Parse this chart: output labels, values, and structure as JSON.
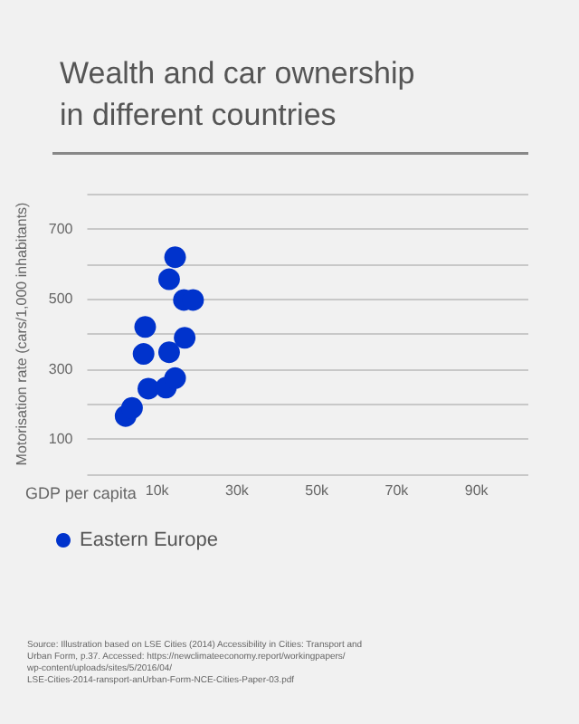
{
  "chart_data": {
    "type": "scatter",
    "title": "Wealth and car ownership\nin different countries",
    "xlabel": "GDP per capita",
    "ylabel": "Motorisation rate (cars/1,000 inhabitants)",
    "xlim": [
      -7500,
      103000
    ],
    "xticks": [
      {
        "value": 10000,
        "label": "10k"
      },
      {
        "value": 30000,
        "label": "30k"
      },
      {
        "value": 50000,
        "label": "50k"
      },
      {
        "value": 70000,
        "label": "70k"
      },
      {
        "value": 90000,
        "label": "90k"
      }
    ],
    "ylim": [
      0,
      800
    ],
    "yticks": [
      {
        "value": 0,
        "label": null
      },
      100,
      {
        "value": 200,
        "label": null
      },
      300,
      {
        "value": 400,
        "label": null
      },
      500,
      {
        "value": 600,
        "label": null
      },
      700,
      {
        "value": 800,
        "label": null
      }
    ],
    "grid": "y",
    "legend": "bottom left",
    "marker": "circle",
    "series": [
      {
        "name": "Eastern Europe",
        "color": "#0033cc",
        "x": [
          2100,
          3700,
          7800,
          6600,
          7000,
          12200,
          13000,
          14500,
          13000,
          14500,
          16900,
          16700,
          19000
        ],
        "values": [
          166,
          189,
          244,
          343,
          420,
          247,
          348,
          274,
          556,
          619,
          389,
          497,
          497
        ]
      }
    ],
    "annotations": [
      "Source: Illustration based on LSE Cities (2014) Accessibility in Cities: Transport and Urban Form, p.37. Accessed: https://newclimateeconomy.report/workingpapers/wp-content/uploads/sites/5/2016/04/LSE-Cities-2014-ransport-anUrban-Form-NCE-Cities-Paper-03.pdf"
    ]
  }
}
